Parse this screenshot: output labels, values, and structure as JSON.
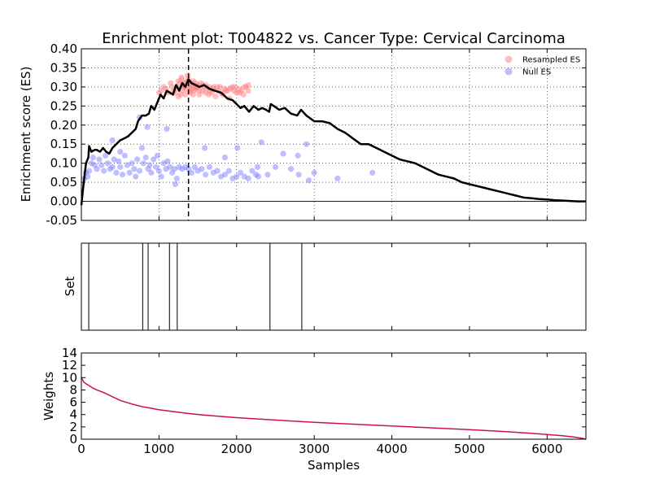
{
  "title": "Enrichment plot: T004822 vs. Cancer Type: Cervical Carcinoma",
  "colors": {
    "es_line": "#000000",
    "resampled": "#ff7f7f",
    "null": "#7f7fff",
    "weights_line": "#cc1144",
    "hit_line": "#000000"
  },
  "chart_data": [
    {
      "type": "line",
      "panel": "enrichment",
      "ylabel": "Enrichment score (ES)",
      "xlim": [
        0,
        6500
      ],
      "ylim": [
        -0.05,
        0.4
      ],
      "yticks": [
        "-0.05",
        "0.00",
        "0.05",
        "0.10",
        "0.15",
        "0.20",
        "0.25",
        "0.30",
        "0.35",
        "0.40"
      ],
      "grid": true,
      "legend_position": "top-right",
      "legend": [
        {
          "label": "Resampled ES"
        },
        {
          "label": "Null ES"
        }
      ],
      "peak_x": 1380,
      "es_curve": {
        "x": [
          0,
          30,
          60,
          90,
          100,
          130,
          170,
          200,
          240,
          280,
          320,
          360,
          400,
          450,
          500,
          550,
          600,
          650,
          700,
          730,
          780,
          830,
          870,
          900,
          940,
          980,
          1020,
          1060,
          1100,
          1140,
          1180,
          1220,
          1260,
          1300,
          1340,
          1380,
          1420,
          1470,
          1520,
          1580,
          1650,
          1720,
          1800,
          1880,
          1950,
          2000,
          2050,
          2100,
          2160,
          2220,
          2280,
          2330,
          2380,
          2420,
          2440,
          2480,
          2550,
          2620,
          2700,
          2780,
          2830,
          2900,
          3000,
          3100,
          3200,
          3300,
          3400,
          3500,
          3600,
          3700,
          3800,
          3900,
          4000,
          4100,
          4200,
          4300,
          4400,
          4500,
          4600,
          4700,
          4800,
          4900,
          5000,
          5100,
          5200,
          5300,
          5400,
          5500,
          5600,
          5700,
          5800,
          5900,
          6000,
          6100,
          6200,
          6300,
          6400,
          6500
        ],
        "y": [
          -0.01,
          0.05,
          0.1,
          0.115,
          0.145,
          0.13,
          0.135,
          0.135,
          0.13,
          0.14,
          0.13,
          0.125,
          0.14,
          0.15,
          0.16,
          0.165,
          0.17,
          0.18,
          0.19,
          0.21,
          0.225,
          0.225,
          0.23,
          0.25,
          0.24,
          0.26,
          0.28,
          0.27,
          0.29,
          0.285,
          0.28,
          0.305,
          0.29,
          0.31,
          0.3,
          0.32,
          0.31,
          0.305,
          0.3,
          0.305,
          0.295,
          0.29,
          0.285,
          0.27,
          0.265,
          0.255,
          0.245,
          0.25,
          0.235,
          0.25,
          0.24,
          0.245,
          0.24,
          0.235,
          0.255,
          0.25,
          0.24,
          0.245,
          0.23,
          0.225,
          0.24,
          0.225,
          0.21,
          0.21,
          0.205,
          0.19,
          0.18,
          0.165,
          0.15,
          0.15,
          0.14,
          0.13,
          0.12,
          0.11,
          0.105,
          0.1,
          0.09,
          0.08,
          0.07,
          0.065,
          0.06,
          0.05,
          0.045,
          0.04,
          0.035,
          0.03,
          0.025,
          0.02,
          0.015,
          0.01,
          0.008,
          0.006,
          0.005,
          0.003,
          0.002,
          0.001,
          0.0,
          0.0
        ]
      },
      "resampled_es": {
        "x": [
          1000,
          1030,
          1060,
          1090,
          1120,
          1150,
          1170,
          1190,
          1210,
          1230,
          1250,
          1270,
          1290,
          1300,
          1310,
          1320,
          1330,
          1340,
          1350,
          1360,
          1370,
          1380,
          1390,
          1400,
          1410,
          1420,
          1430,
          1440,
          1450,
          1460,
          1470,
          1480,
          1490,
          1500,
          1520,
          1540,
          1560,
          1580,
          1600,
          1620,
          1640,
          1660,
          1680,
          1700,
          1730,
          1760,
          1790,
          1820,
          1850,
          1880,
          1910,
          1940,
          1970,
          2000,
          2030,
          2060,
          2090,
          2120,
          2150,
          1250,
          1280,
          1320,
          1360,
          1400,
          1440,
          1480,
          1520,
          1560,
          1600,
          1640,
          1700,
          1750,
          1800,
          1860,
          1920,
          1980,
          2040,
          2100,
          2150,
          1290
        ],
        "y": [
          0.285,
          0.29,
          0.3,
          0.295,
          0.285,
          0.31,
          0.3,
          0.29,
          0.285,
          0.3,
          0.315,
          0.31,
          0.325,
          0.29,
          0.305,
          0.31,
          0.3,
          0.28,
          0.295,
          0.315,
          0.33,
          0.32,
          0.3,
          0.285,
          0.31,
          0.295,
          0.305,
          0.315,
          0.29,
          0.3,
          0.31,
          0.295,
          0.305,
          0.3,
          0.28,
          0.31,
          0.29,
          0.3,
          0.305,
          0.295,
          0.3,
          0.29,
          0.285,
          0.3,
          0.275,
          0.29,
          0.3,
          0.28,
          0.295,
          0.29,
          0.27,
          0.3,
          0.29,
          0.285,
          0.295,
          0.29,
          0.28,
          0.3,
          0.305,
          0.275,
          0.28,
          0.3,
          0.31,
          0.29,
          0.28,
          0.3,
          0.29,
          0.305,
          0.285,
          0.28,
          0.295,
          0.3,
          0.285,
          0.29,
          0.295,
          0.3,
          0.285,
          0.3,
          0.29,
          0.32
        ]
      },
      "null_es": {
        "x": [
          40,
          60,
          80,
          100,
          130,
          150,
          170,
          200,
          230,
          260,
          290,
          310,
          340,
          370,
          400,
          420,
          450,
          480,
          500,
          530,
          560,
          590,
          620,
          650,
          680,
          700,
          720,
          750,
          780,
          800,
          830,
          860,
          880,
          900,
          930,
          960,
          980,
          1000,
          1030,
          1060,
          1090,
          1110,
          1140,
          1170,
          1200,
          1230,
          1260,
          1300,
          1340,
          1380,
          1420,
          1460,
          1500,
          1550,
          1600,
          1650,
          1700,
          1750,
          1800,
          1850,
          1900,
          1950,
          2000,
          2050,
          2100,
          2150,
          2200,
          2250,
          2280,
          2320,
          2400,
          2500,
          2600,
          2700,
          2800,
          2900,
          2930,
          3000,
          3300,
          3750,
          400,
          500,
          750,
          850,
          1100,
          1210,
          1590,
          1850,
          2010,
          2790,
          2270
        ],
        "y": [
          0.06,
          0.075,
          0.065,
          0.08,
          0.1,
          0.115,
          0.095,
          0.085,
          0.11,
          0.095,
          0.08,
          0.12,
          0.1,
          0.085,
          0.09,
          0.11,
          0.075,
          0.105,
          0.09,
          0.07,
          0.12,
          0.095,
          0.075,
          0.1,
          0.085,
          0.065,
          0.11,
          0.08,
          0.14,
          0.1,
          0.115,
          0.085,
          0.095,
          0.075,
          0.11,
          0.09,
          0.12,
          0.08,
          0.065,
          0.1,
          0.085,
          0.105,
          0.09,
          0.075,
          0.085,
          0.06,
          0.09,
          0.085,
          0.09,
          0.085,
          0.075,
          0.09,
          0.08,
          0.085,
          0.07,
          0.09,
          0.075,
          0.08,
          0.065,
          0.07,
          0.08,
          0.06,
          0.065,
          0.075,
          0.065,
          0.06,
          0.08,
          0.07,
          0.065,
          0.155,
          0.07,
          0.09,
          0.125,
          0.085,
          0.07,
          0.15,
          0.055,
          0.075,
          0.06,
          0.075,
          0.16,
          0.13,
          0.22,
          0.195,
          0.19,
          0.045,
          0.14,
          0.115,
          0.14,
          0.12,
          0.09
        ]
      }
    },
    {
      "type": "line",
      "panel": "set",
      "ylabel": "Set",
      "xlim": [
        0,
        6500
      ],
      "hits_x": [
        95,
        790,
        860,
        1135,
        1235,
        2430,
        2840
      ]
    },
    {
      "type": "line",
      "panel": "weights",
      "xlabel": "Samples",
      "ylabel": "Weights",
      "xlim": [
        0,
        6500
      ],
      "ylim": [
        0,
        14
      ],
      "xticks": [
        "0",
        "1000",
        "2000",
        "3000",
        "4000",
        "5000",
        "6000"
      ],
      "yticks": [
        "0",
        "2",
        "4",
        "6",
        "8",
        "10",
        "12",
        "14"
      ],
      "x": [
        0,
        30,
        60,
        100,
        150,
        200,
        300,
        400,
        500,
        600,
        700,
        800,
        1000,
        1200,
        1400,
        1600,
        1800,
        2000,
        2500,
        3000,
        3500,
        4000,
        4500,
        5000,
        5500,
        5800,
        6000,
        6200,
        6350,
        6450,
        6500
      ],
      "y": [
        10.0,
        9.3,
        9.0,
        8.7,
        8.3,
        8.0,
        7.5,
        6.9,
        6.3,
        5.9,
        5.55,
        5.25,
        4.8,
        4.45,
        4.15,
        3.9,
        3.7,
        3.5,
        3.1,
        2.75,
        2.45,
        2.15,
        1.85,
        1.55,
        1.2,
        0.95,
        0.75,
        0.55,
        0.35,
        0.15,
        0.0
      ]
    }
  ]
}
